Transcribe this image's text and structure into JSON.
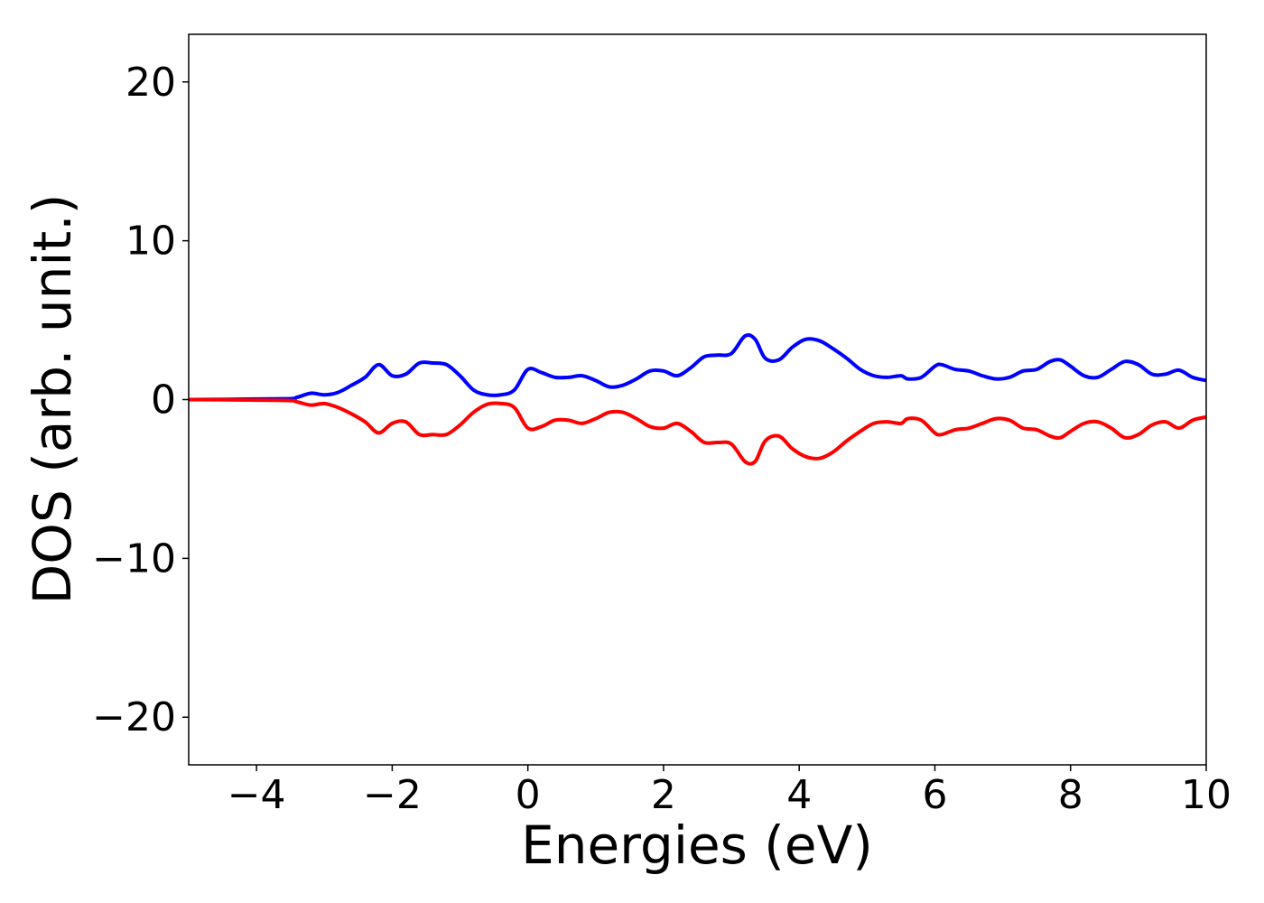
{
  "chart_data": {
    "type": "line",
    "title": "",
    "xlabel": "Energies (eV)",
    "ylabel": "DOS (arb. unit.)",
    "xlim": [
      -5,
      10
    ],
    "ylim": [
      -23,
      23
    ],
    "grid": false,
    "xticks": [
      -4,
      -2,
      0,
      2,
      4,
      6,
      8,
      10
    ],
    "xtick_labels": [
      "−4",
      "−2",
      "0",
      "2",
      "4",
      "6",
      "8",
      "10"
    ],
    "yticks": [
      20,
      10,
      0,
      -10,
      -20
    ],
    "ytick_labels": [
      "20",
      "10",
      "0",
      "−10",
      "−20"
    ],
    "series": [
      {
        "color": "#0000ff",
        "x": [
          -5,
          -3.6,
          -3.4,
          -3.2,
          -3.0,
          -2.8,
          -2.6,
          -2.4,
          -2.2,
          -2.0,
          -1.8,
          -1.6,
          -1.4,
          -1.2,
          -1.0,
          -0.8,
          -0.6,
          -0.4,
          -0.2,
          0.0,
          0.2,
          0.4,
          0.6,
          0.8,
          1.0,
          1.2,
          1.4,
          1.6,
          1.8,
          2.0,
          2.2,
          2.4,
          2.6,
          2.8,
          3.0,
          3.2,
          3.35,
          3.5,
          3.7,
          3.9,
          4.1,
          4.3,
          4.5,
          4.7,
          4.9,
          5.1,
          5.3,
          5.5,
          5.6,
          5.8,
          6.0,
          6.1,
          6.3,
          6.5,
          6.7,
          6.9,
          7.1,
          7.3,
          7.5,
          7.7,
          7.85,
          8.0,
          8.2,
          8.4,
          8.6,
          8.8,
          9.0,
          9.2,
          9.4,
          9.6,
          9.8,
          10.0
        ],
        "y": [
          0,
          0.05,
          0.15,
          0.4,
          0.3,
          0.45,
          0.9,
          1.4,
          2.2,
          1.5,
          1.6,
          2.3,
          2.3,
          2.2,
          1.5,
          0.6,
          0.3,
          0.3,
          0.6,
          1.9,
          1.7,
          1.4,
          1.4,
          1.5,
          1.2,
          0.8,
          0.9,
          1.3,
          1.8,
          1.8,
          1.5,
          2.0,
          2.7,
          2.8,
          2.9,
          4.0,
          3.8,
          2.6,
          2.5,
          3.3,
          3.8,
          3.7,
          3.2,
          2.6,
          1.9,
          1.5,
          1.4,
          1.5,
          1.3,
          1.4,
          2.1,
          2.2,
          1.9,
          1.8,
          1.5,
          1.3,
          1.4,
          1.8,
          1.9,
          2.4,
          2.5,
          2.1,
          1.5,
          1.4,
          1.9,
          2.4,
          2.2,
          1.6,
          1.6,
          1.85,
          1.4,
          1.2
        ]
      },
      {
        "color": "#ff0000",
        "x": [
          -5,
          -3.6,
          -3.4,
          -3.2,
          -3.0,
          -2.8,
          -2.6,
          -2.4,
          -2.2,
          -2.0,
          -1.8,
          -1.6,
          -1.4,
          -1.2,
          -1.0,
          -0.8,
          -0.6,
          -0.4,
          -0.2,
          0.0,
          0.2,
          0.4,
          0.6,
          0.8,
          1.0,
          1.2,
          1.4,
          1.6,
          1.8,
          2.0,
          2.2,
          2.4,
          2.6,
          2.8,
          3.0,
          3.2,
          3.35,
          3.5,
          3.7,
          3.9,
          4.1,
          4.3,
          4.5,
          4.7,
          4.9,
          5.1,
          5.3,
          5.5,
          5.6,
          5.8,
          6.0,
          6.1,
          6.3,
          6.5,
          6.7,
          6.9,
          7.1,
          7.3,
          7.5,
          7.7,
          7.85,
          8.0,
          8.2,
          8.4,
          8.6,
          8.8,
          9.0,
          9.2,
          9.4,
          9.6,
          9.8,
          10.0
        ],
        "y": [
          0,
          -0.05,
          -0.15,
          -0.35,
          -0.25,
          -0.5,
          -0.9,
          -1.4,
          -2.1,
          -1.5,
          -1.4,
          -2.2,
          -2.2,
          -2.2,
          -1.6,
          -0.8,
          -0.3,
          -0.25,
          -0.5,
          -1.8,
          -1.7,
          -1.3,
          -1.3,
          -1.5,
          -1.2,
          -0.8,
          -0.8,
          -1.2,
          -1.7,
          -1.8,
          -1.5,
          -2.0,
          -2.7,
          -2.7,
          -2.8,
          -3.9,
          -3.9,
          -2.6,
          -2.3,
          -3.1,
          -3.6,
          -3.7,
          -3.3,
          -2.6,
          -2.0,
          -1.5,
          -1.4,
          -1.5,
          -1.2,
          -1.3,
          -2.1,
          -2.2,
          -1.9,
          -1.8,
          -1.5,
          -1.2,
          -1.3,
          -1.8,
          -1.9,
          -2.3,
          -2.4,
          -2.0,
          -1.5,
          -1.4,
          -1.8,
          -2.4,
          -2.2,
          -1.6,
          -1.4,
          -1.8,
          -1.3,
          -1.1
        ]
      }
    ]
  }
}
